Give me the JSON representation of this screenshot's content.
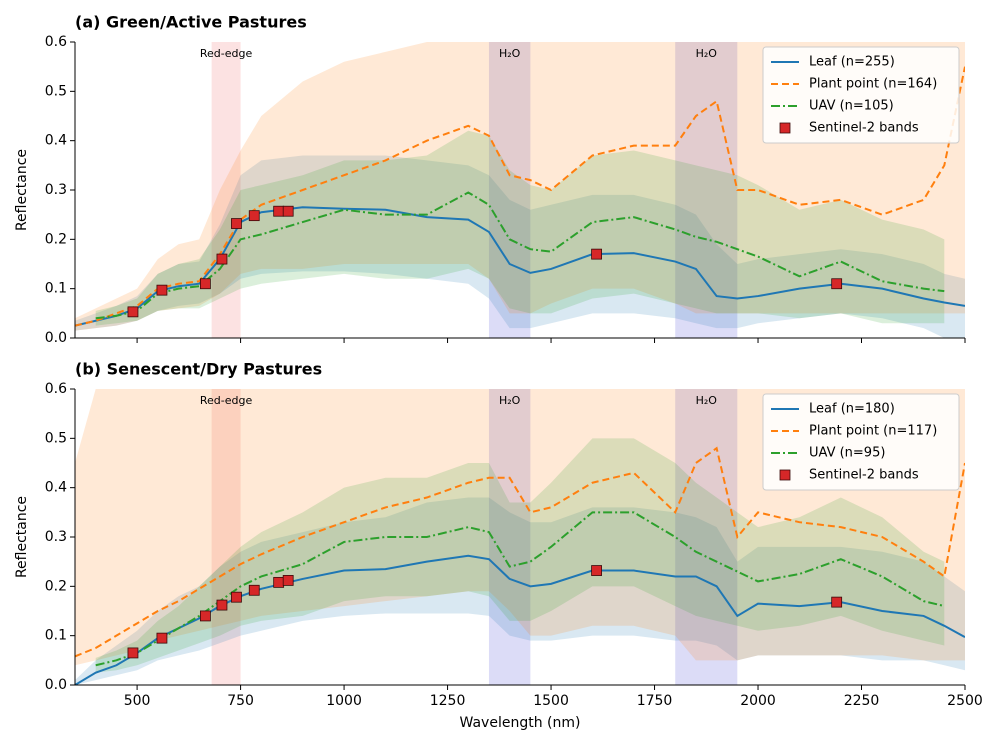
{
  "chart_data": [
    {
      "type": "line",
      "title": "(a) Green/Active Pastures",
      "ylabel": "Reflectance",
      "show_xtick_labels": false,
      "xlim": [
        350,
        2500
      ],
      "ylim": [
        0,
        0.6
      ],
      "xticks": [
        500,
        750,
        1000,
        1250,
        1500,
        1750,
        2000,
        2250,
        2500
      ],
      "yticks": [
        {
          "value": 0,
          "label": "0.0"
        },
        0.1,
        0.2,
        0.3,
        0.4,
        0.5,
        0.6
      ],
      "legend": "upper right",
      "regions": [
        {
          "label": "Red-edge",
          "start": 680,
          "end": 750,
          "color": "#f4a0a0",
          "text_color": "#c05050"
        },
        {
          "label": "H₂O",
          "start": 1350,
          "end": 1450,
          "color": "#8c8ce6",
          "text_color": "#5050b0"
        },
        {
          "label": "H₂O",
          "start": 1800,
          "end": 1950,
          "color": "#8c8ce6",
          "text_color": "#5050b0"
        }
      ],
      "x": [
        350,
        400,
        450,
        500,
        550,
        600,
        650,
        700,
        750,
        800,
        900,
        1000,
        1100,
        1200,
        1300,
        1350,
        1400,
        1450,
        1500,
        1600,
        1700,
        1800,
        1850,
        1900,
        1950,
        2000,
        2100,
        2200,
        2300,
        2400,
        2450,
        2500
      ],
      "series": [
        {
          "name": "Leaf (n=255)",
          "color": "#1f77b4",
          "dash": "solid",
          "values": [
            0.025,
            0.035,
            0.045,
            0.06,
            0.095,
            0.105,
            0.11,
            0.16,
            0.235,
            0.255,
            0.265,
            0.262,
            0.26,
            0.245,
            0.24,
            0.215,
            0.15,
            0.132,
            0.14,
            0.17,
            0.172,
            0.155,
            0.14,
            0.085,
            0.08,
            0.085,
            0.1,
            0.11,
            0.1,
            0.08,
            0.072,
            0.065
          ],
          "lower": [
            0.015,
            0.02,
            0.025,
            0.035,
            0.055,
            0.065,
            0.07,
            0.09,
            0.12,
            0.13,
            0.135,
            0.135,
            0.13,
            0.12,
            0.11,
            0.08,
            0.02,
            0.02,
            0.03,
            0.05,
            0.05,
            0.04,
            0.03,
            0.02,
            0.02,
            0.03,
            0.04,
            0.05,
            0.04,
            0.02,
            0,
            0
          ],
          "upper": [
            0.035,
            0.05,
            0.065,
            0.085,
            0.13,
            0.15,
            0.155,
            0.23,
            0.33,
            0.36,
            0.37,
            0.37,
            0.37,
            0.36,
            0.35,
            0.33,
            0.28,
            0.26,
            0.27,
            0.29,
            0.29,
            0.27,
            0.25,
            0.19,
            0.15,
            0.16,
            0.17,
            0.18,
            0.17,
            0.15,
            0.13,
            0.12
          ]
        },
        {
          "name": "Plant point (n=164)",
          "color": "#ff7f0e",
          "dash": "dashed",
          "values": [
            0.025,
            0.035,
            0.05,
            0.065,
            0.1,
            0.11,
            0.115,
            0.17,
            0.24,
            0.27,
            0.3,
            0.33,
            0.36,
            0.4,
            0.43,
            0.41,
            0.33,
            0.32,
            0.3,
            0.37,
            0.39,
            0.39,
            0.45,
            0.48,
            0.3,
            0.3,
            0.27,
            0.28,
            0.25,
            0.28,
            0.35,
            0.55
          ],
          "lower": [
            0.015,
            0.02,
            0.025,
            0.035,
            0.055,
            0.06,
            0.065,
            0.09,
            0.13,
            0.14,
            0.14,
            0.15,
            0.15,
            0.15,
            0.15,
            0.12,
            0.05,
            0.05,
            0.07,
            0.1,
            0.1,
            0.07,
            0.05,
            0.05,
            0.05,
            0.05,
            0.05,
            0.05,
            0.05,
            0.05,
            0.05,
            0.05
          ],
          "upper": [
            0.04,
            0.06,
            0.08,
            0.1,
            0.16,
            0.19,
            0.2,
            0.3,
            0.38,
            0.45,
            0.52,
            0.56,
            0.58,
            0.6,
            0.6,
            0.6,
            0.6,
            0.6,
            0.6,
            0.6,
            0.6,
            0.6,
            0.6,
            0.6,
            0.6,
            0.6,
            0.6,
            0.6,
            0.6,
            0.6,
            0.6,
            0.6
          ]
        },
        {
          "name": "UAV (n=105)",
          "color": "#2ca02c",
          "dash": "dashdot",
          "values": [
            null,
            0.04,
            0.045,
            0.055,
            0.09,
            0.1,
            0.105,
            0.14,
            0.2,
            0.21,
            0.235,
            0.26,
            0.25,
            0.25,
            0.295,
            0.27,
            0.2,
            0.18,
            0.175,
            0.235,
            0.245,
            0.22,
            0.205,
            0.195,
            0.18,
            0.165,
            0.125,
            0.155,
            0.115,
            0.1,
            0.095,
            null
          ],
          "lower": [
            null,
            0.025,
            0.03,
            0.035,
            0.055,
            0.06,
            0.06,
            0.08,
            0.1,
            0.11,
            0.12,
            0.13,
            0.12,
            0.12,
            0.14,
            0.12,
            0.06,
            0.05,
            0.05,
            0.08,
            0.09,
            0.07,
            0.06,
            0.05,
            0.05,
            0.05,
            0.04,
            0.05,
            0.03,
            0.03,
            0.03,
            null
          ],
          "upper": [
            null,
            0.055,
            0.065,
            0.08,
            0.13,
            0.15,
            0.16,
            0.22,
            0.3,
            0.31,
            0.33,
            0.36,
            0.36,
            0.37,
            0.42,
            0.41,
            0.34,
            0.31,
            0.3,
            0.37,
            0.38,
            0.36,
            0.35,
            0.34,
            0.33,
            0.31,
            0.26,
            0.28,
            0.24,
            0.22,
            0.2,
            null
          ]
        }
      ],
      "markers": {
        "name": "Sentinel-2 bands",
        "color": "#d62728",
        "x": [
          490,
          560,
          665,
          705,
          740,
          783,
          842,
          865,
          1610,
          2190
        ],
        "values": [
          0.053,
          0.097,
          0.11,
          0.16,
          0.232,
          0.248,
          0.257,
          0.257,
          0.17,
          0.11
        ]
      }
    },
    {
      "type": "line",
      "title": "(b) Senescent/Dry Pastures",
      "ylabel": "Reflectance",
      "xlabel": "Wavelength (nm)",
      "show_xtick_labels": true,
      "xlim": [
        350,
        2500
      ],
      "ylim": [
        0,
        0.6
      ],
      "xticks": [
        500,
        750,
        1000,
        1250,
        1500,
        1750,
        2000,
        2250,
        2500
      ],
      "yticks": [
        {
          "value": 0,
          "label": "0.0"
        },
        0.1,
        0.2,
        0.3,
        0.4,
        0.5,
        0.6
      ],
      "legend": "upper right",
      "regions": [
        {
          "label": "Red-edge",
          "start": 680,
          "end": 750,
          "color": "#f4a0a0",
          "text_color": "#c05050"
        },
        {
          "label": "H₂O",
          "start": 1350,
          "end": 1450,
          "color": "#8c8ce6",
          "text_color": "#5050b0"
        },
        {
          "label": "H₂O",
          "start": 1800,
          "end": 1950,
          "color": "#8c8ce6",
          "text_color": "#5050b0"
        }
      ],
      "x": [
        350,
        400,
        450,
        500,
        550,
        600,
        650,
        700,
        750,
        800,
        900,
        1000,
        1100,
        1200,
        1300,
        1350,
        1400,
        1450,
        1500,
        1600,
        1700,
        1800,
        1850,
        1900,
        1950,
        2000,
        2100,
        2200,
        2300,
        2400,
        2450,
        2500
      ],
      "series": [
        {
          "name": "Leaf (n=180)",
          "color": "#1f77b4",
          "dash": "solid",
          "values": [
            0,
            0.025,
            0.04,
            0.065,
            0.095,
            0.115,
            0.135,
            0.16,
            0.18,
            0.195,
            0.215,
            0.232,
            0.235,
            0.25,
            0.262,
            0.255,
            0.215,
            0.2,
            0.205,
            0.232,
            0.232,
            0.22,
            0.22,
            0.2,
            0.14,
            0.165,
            0.16,
            0.168,
            0.15,
            0.14,
            0.12,
            0.097
          ],
          "lower": [
            0,
            0.01,
            0.02,
            0.03,
            0.05,
            0.06,
            0.07,
            0.085,
            0.1,
            0.11,
            0.13,
            0.14,
            0.145,
            0.145,
            0.145,
            0.14,
            0.1,
            0.09,
            0.09,
            0.1,
            0.1,
            0.09,
            0.09,
            0.08,
            0.05,
            0.06,
            0.06,
            0.06,
            0.05,
            0.05,
            0.04,
            0.03
          ],
          "upper": [
            0.01,
            0.05,
            0.08,
            0.11,
            0.15,
            0.18,
            0.2,
            0.24,
            0.27,
            0.29,
            0.31,
            0.33,
            0.34,
            0.37,
            0.38,
            0.38,
            0.35,
            0.33,
            0.33,
            0.36,
            0.36,
            0.35,
            0.34,
            0.32,
            0.25,
            0.28,
            0.28,
            0.28,
            0.27,
            0.25,
            0.22,
            0.19
          ]
        },
        {
          "name": "Plant point (n=117)",
          "color": "#ff7f0e",
          "dash": "dashed",
          "values": [
            0.058,
            0.075,
            0.1,
            0.125,
            0.15,
            0.17,
            0.195,
            0.22,
            0.245,
            0.265,
            0.3,
            0.33,
            0.36,
            0.38,
            0.41,
            0.42,
            0.42,
            0.35,
            0.36,
            0.41,
            0.43,
            0.35,
            0.45,
            0.48,
            0.3,
            0.35,
            0.33,
            0.32,
            0.3,
            0.25,
            0.22,
            0.45
          ],
          "lower": [
            0.04,
            0.05,
            0.06,
            0.07,
            0.09,
            0.1,
            0.11,
            0.12,
            0.13,
            0.14,
            0.15,
            0.16,
            0.17,
            0.18,
            0.19,
            0.19,
            0.15,
            0.1,
            0.1,
            0.12,
            0.12,
            0.1,
            0.05,
            0.05,
            0.05,
            0.06,
            0.06,
            0.06,
            0.06,
            0.05,
            0.05,
            0.05
          ],
          "upper": [
            0.45,
            0.6,
            0.6,
            0.6,
            0.6,
            0.6,
            0.6,
            0.6,
            0.6,
            0.6,
            0.6,
            0.6,
            0.6,
            0.6,
            0.6,
            0.6,
            0.6,
            0.6,
            0.6,
            0.6,
            0.6,
            0.6,
            0.6,
            0.6,
            0.6,
            0.6,
            0.6,
            0.6,
            0.6,
            0.6,
            0.6,
            0.6
          ]
        },
        {
          "name": "UAV (n=95)",
          "color": "#2ca02c",
          "dash": "dashdot",
          "values": [
            null,
            0.04,
            0.05,
            0.065,
            0.09,
            0.115,
            0.14,
            0.17,
            0.2,
            0.22,
            0.245,
            0.29,
            0.3,
            0.3,
            0.32,
            0.31,
            0.24,
            0.25,
            0.28,
            0.35,
            0.35,
            0.3,
            0.27,
            0.25,
            0.23,
            0.21,
            0.225,
            0.255,
            0.22,
            0.17,
            0.16,
            null
          ],
          "lower": [
            null,
            0.025,
            0.03,
            0.04,
            0.055,
            0.07,
            0.085,
            0.1,
            0.12,
            0.13,
            0.14,
            0.17,
            0.18,
            0.18,
            0.19,
            0.18,
            0.13,
            0.13,
            0.15,
            0.2,
            0.2,
            0.16,
            0.14,
            0.13,
            0.12,
            0.11,
            0.12,
            0.14,
            0.11,
            0.09,
            0.08,
            null
          ],
          "upper": [
            null,
            0.055,
            0.07,
            0.09,
            0.13,
            0.16,
            0.2,
            0.24,
            0.28,
            0.31,
            0.35,
            0.4,
            0.42,
            0.42,
            0.45,
            0.45,
            0.37,
            0.37,
            0.41,
            0.5,
            0.5,
            0.45,
            0.41,
            0.38,
            0.35,
            0.32,
            0.34,
            0.38,
            0.34,
            0.27,
            0.25,
            null
          ]
        }
      ],
      "markers": {
        "name": "Sentinel-2 bands",
        "color": "#d62728",
        "x": [
          490,
          560,
          665,
          705,
          740,
          783,
          842,
          865,
          1610,
          2190
        ],
        "values": [
          0.065,
          0.095,
          0.14,
          0.162,
          0.178,
          0.192,
          0.208,
          0.212,
          0.232,
          0.168
        ]
      }
    }
  ]
}
